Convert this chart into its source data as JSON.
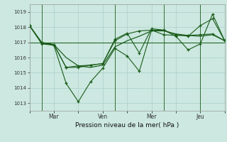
{
  "background_color": "#cce8e0",
  "grid_color": "#aacfc8",
  "line_color": "#1a5c1a",
  "xlabel": "Pression niveau de la mer( hPa )",
  "ylim": [
    1012.5,
    1019.5
  ],
  "yticks": [
    1013,
    1014,
    1015,
    1016,
    1017,
    1018,
    1019
  ],
  "xtick_labels": [
    "",
    "Mar",
    "",
    "Ven",
    "",
    "Mer",
    "",
    "Jeu",
    ""
  ],
  "xtick_positions": [
    0,
    12,
    24,
    36,
    48,
    60,
    72,
    84,
    96
  ],
  "vline_x": [
    6,
    42,
    66,
    84
  ],
  "line1_x": [
    0,
    6,
    12,
    18,
    24,
    30,
    36,
    42,
    48,
    54,
    60,
    66,
    72,
    78,
    84,
    90,
    96
  ],
  "line1_y": [
    1018.1,
    1016.9,
    1016.8,
    1014.3,
    1013.1,
    1014.4,
    1015.3,
    1016.6,
    1016.1,
    1015.1,
    1017.8,
    1017.8,
    1017.5,
    1017.4,
    1018.1,
    1018.55,
    1017.1
  ],
  "line2_x": [
    0,
    6,
    12,
    18,
    24,
    30,
    36,
    42,
    48,
    54,
    60,
    66,
    72,
    78,
    84,
    90,
    96
  ],
  "line2_y": [
    1018.1,
    1017.0,
    1016.85,
    1015.35,
    1015.35,
    1015.5,
    1015.6,
    1017.1,
    1017.55,
    1017.75,
    1017.8,
    1017.5,
    1017.45,
    1017.45,
    1017.5,
    1017.55,
    1017.1
  ],
  "line3_x": [
    0,
    96
  ],
  "line3_y": [
    1017.0,
    1017.0
  ],
  "line4_x": [
    0,
    6,
    12,
    18,
    24,
    30,
    36,
    42,
    48,
    54,
    60,
    66,
    72,
    78,
    84,
    90,
    96
  ],
  "line4_y": [
    1018.1,
    1016.95,
    1016.85,
    1015.35,
    1015.45,
    1015.5,
    1015.6,
    1017.2,
    1017.6,
    1016.3,
    1017.9,
    1017.8,
    1017.4,
    1016.5,
    1016.9,
    1018.85,
    1017.1
  ],
  "smooth_x": [
    0,
    6,
    12,
    18,
    24,
    30,
    36,
    42,
    48,
    54,
    60,
    66,
    72,
    78,
    84,
    90,
    96
  ],
  "smooth_y": [
    1018.1,
    1016.95,
    1016.85,
    1016.0,
    1015.45,
    1015.35,
    1015.5,
    1016.7,
    1017.1,
    1017.4,
    1017.75,
    1017.75,
    1017.55,
    1017.45,
    1017.4,
    1017.5,
    1017.1
  ]
}
